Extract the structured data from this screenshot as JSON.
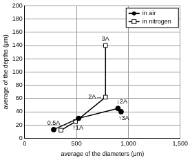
{
  "chart_data": {
    "type": "line",
    "x_label": "average of the diameters (μm)",
    "y_label": "average of the depths (μm)",
    "xlim": [
      0,
      1500
    ],
    "xticks": [
      0,
      500,
      1000,
      1500
    ],
    "ylim": [
      0,
      200
    ],
    "yticks": [
      0,
      20,
      40,
      60,
      80,
      100,
      120,
      140,
      160,
      180,
      200
    ],
    "grid": true,
    "legend": "top-right",
    "series": [
      {
        "name": "in air",
        "color": "#000000",
        "marker": "circle",
        "line_style": "solid",
        "x": [
          280,
          520,
          900,
          930
        ],
        "values": [
          13,
          30,
          45,
          40
        ],
        "labels": [
          "0.5A",
          null,
          "↓2A",
          "↑3A"
        ]
      },
      {
        "name": "in nitrogen",
        "color": "#000000",
        "marker": "square",
        "line_style": "solid",
        "x": [
          350,
          490,
          780,
          780
        ],
        "values": [
          12,
          25,
          62,
          140
        ],
        "labels": [
          null,
          "↑1A",
          "2A→",
          "3A"
        ]
      }
    ]
  }
}
